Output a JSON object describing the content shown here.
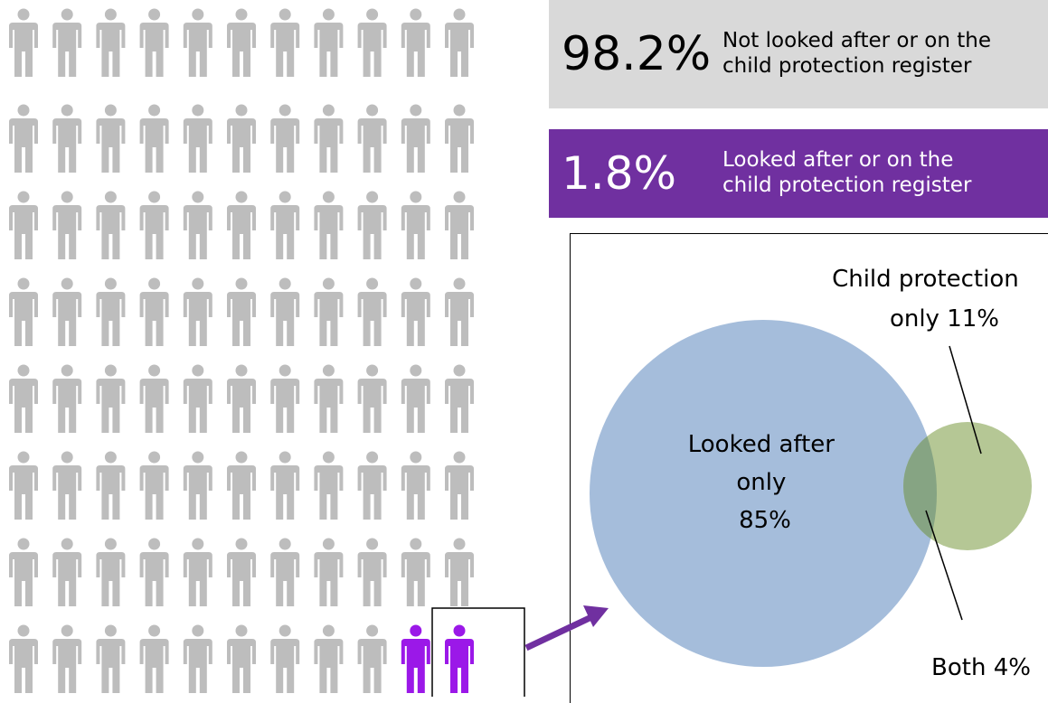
{
  "people": {
    "cols": 11,
    "rows": 8,
    "default_color": "#bdbdbd",
    "highlight_color": "#9b18e8",
    "highlight_count": 2,
    "icon": "person-icon"
  },
  "stats": [
    {
      "value": "98.2%",
      "label": "Not looked after or on the\nchild protection register",
      "color": "#d9d9d9"
    },
    {
      "value": "1.8%",
      "label": "Looked after or on the\nchild protection register",
      "color": "#7030a0"
    }
  ],
  "venn": {
    "looked_after_color": "#a5bddb",
    "child_protection_color": "#b5c795",
    "overlap_color": "#86a483",
    "arrow_color": "#7030a0",
    "looked_after_label": [
      "Looked after",
      "only",
      "85%"
    ],
    "child_protection_label": [
      "Child protection",
      "only 11%"
    ],
    "both_label": "Both 4%",
    "looked_after_pct": 85,
    "child_protection_pct": 11,
    "both_pct": 4
  }
}
